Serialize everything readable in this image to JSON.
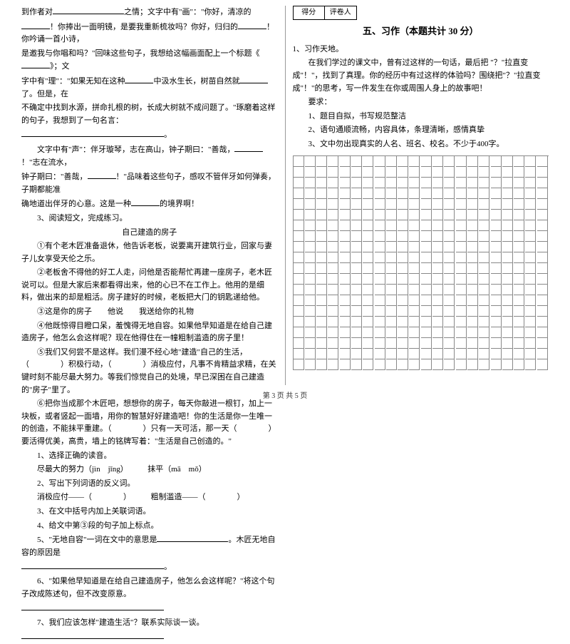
{
  "left": {
    "p1a": "到作者对",
    "p1b": "之情；文字中有\"画\"：\"你好，清凉的",
    "p2a": "！你捧出一面明镜，是要我重新梳妆吗？你好，归归的",
    "p2b": "！你吟诵一首小诗，",
    "p3a": "是邀我与你唱和吗？\"回味这些句子，我想给这幅画面配上一个标题《",
    "p3b": "》；文",
    "p4a": "字中有\"理\"：\"如果无知在这种",
    "p4b": "中汲水生长，树苗自然就",
    "p4c": "了。但是，在",
    "p5": "不确定中找到水源，拼命扎根的树，长成大树就不成问题了。\"琢磨着这样的句子，我想到了一句名言：",
    "p6a": "文字中有\"声\"：伴牙璇琴，志在高山，钟子期曰：\"善哉，",
    "p6b": "！\"志在流水，",
    "p7": "钟子期曰：\"善哉，",
    "p7b": "！\"品味着这些句子，感叹不管伴牙如何弹奏，子期都能准",
    "p8a": "确地道出伴牙的心意。这是一种",
    "p8b": "的境界啊！",
    "p9": "3、阅读短文，完成练习。",
    "t1": "自己建造的房子",
    "p10": "①有个老木匠准备退休，他告诉老板，说要离开建筑行业，回家与妻子儿女享受天伦之乐。",
    "p11": "②老板舍不得他的好工人走，问他是否能帮忙再建一座房子，老木匠说可以。但是大家后来都看得出来，他的心已不在工作上。他用的是细料，做出来的却是粗活。房子建好的时候，老板把大门的钥匙递给他。",
    "p12": "③这是你的房子　　他说　　我送给你的礼物",
    "p13": "④他既惊得目瞪口呆，羞愧得无地自容。如果他早知道是在给自己建造房子，他怎么会这样呢？现在他得住在一幢粗制滥造的房子里！",
    "p14": "⑤我们又何尝不是这样。我们漫不经心地\"建造\"自己的生活，（　　　　）积极行动，（　　　　）消极应付，凡事不肯精益求精，在关键时刻不能尽最大努力。等我们惊觉自己的处境，早已深困在自己建造的\"房子\"里了。",
    "p15": "⑥把你当成那个木匠吧，想想你的房子，每天你敲进一根钉，加上一块板，或者竖起一面墙，用你的智慧好好建造吧！你的生活是你一生唯一的创造，不能抹平重建。（　　　　）只有一天可活，那一天（　　　　）要活得优美，高贵，墙上的铭牌写着：\"生活是自己创造的。\"",
    "q1": "1、选择正确的读音。",
    "q1a": "尽最大的努力（jìn　jǐng）　　　抹平（mā　mǒ）",
    "q2": "2、写出下列词语的反义词。",
    "q2a": "消极应付——（　　　　）　　　粗制滥造——（　　　　）",
    "q3": "3、在文中括号内加上关联词语。",
    "q4": "4、给文中第③段的句子加上标点。",
    "q5a": "5、\"无地自容\"一词在文中的意思是",
    "q5b": "。木匠无地自容的原因是",
    "q5c": "。",
    "q6a": "6、\"如果他早知道是在给自己建造房子，他怎么会这样呢？\"将这个句子改成陈述句，但不改变原意。",
    "q7": "7、我们应该怎样\"建造生活\"？联系实际谈一谈。"
  },
  "right": {
    "score1": "得分",
    "score2": "评卷人",
    "title": "五、习作（本题共计 30 分）",
    "h1": "1、习作天地。",
    "p1": "在我们学过的课文中，曾有过这样的一句话，最后把 \"？\"拉直变成\"！\"，找到了真理。你的经历中有过这样的体验吗？围绕把\"？\"拉直变成\"！\"的思考，写一件发生在你或周围人身上的故事吧！",
    "req": "要求：",
    "r1": "1、题目自拟，书写规范整洁",
    "r2": "2、语句通顺流畅，内容具体，条理清晰，感情真挚",
    "r3": "3、文中勿出现真实的人名、班名、校名。不少于400字。"
  },
  "footer": "第 3 页 共 5 页",
  "grid": {
    "rows": 20,
    "cols": 22
  }
}
